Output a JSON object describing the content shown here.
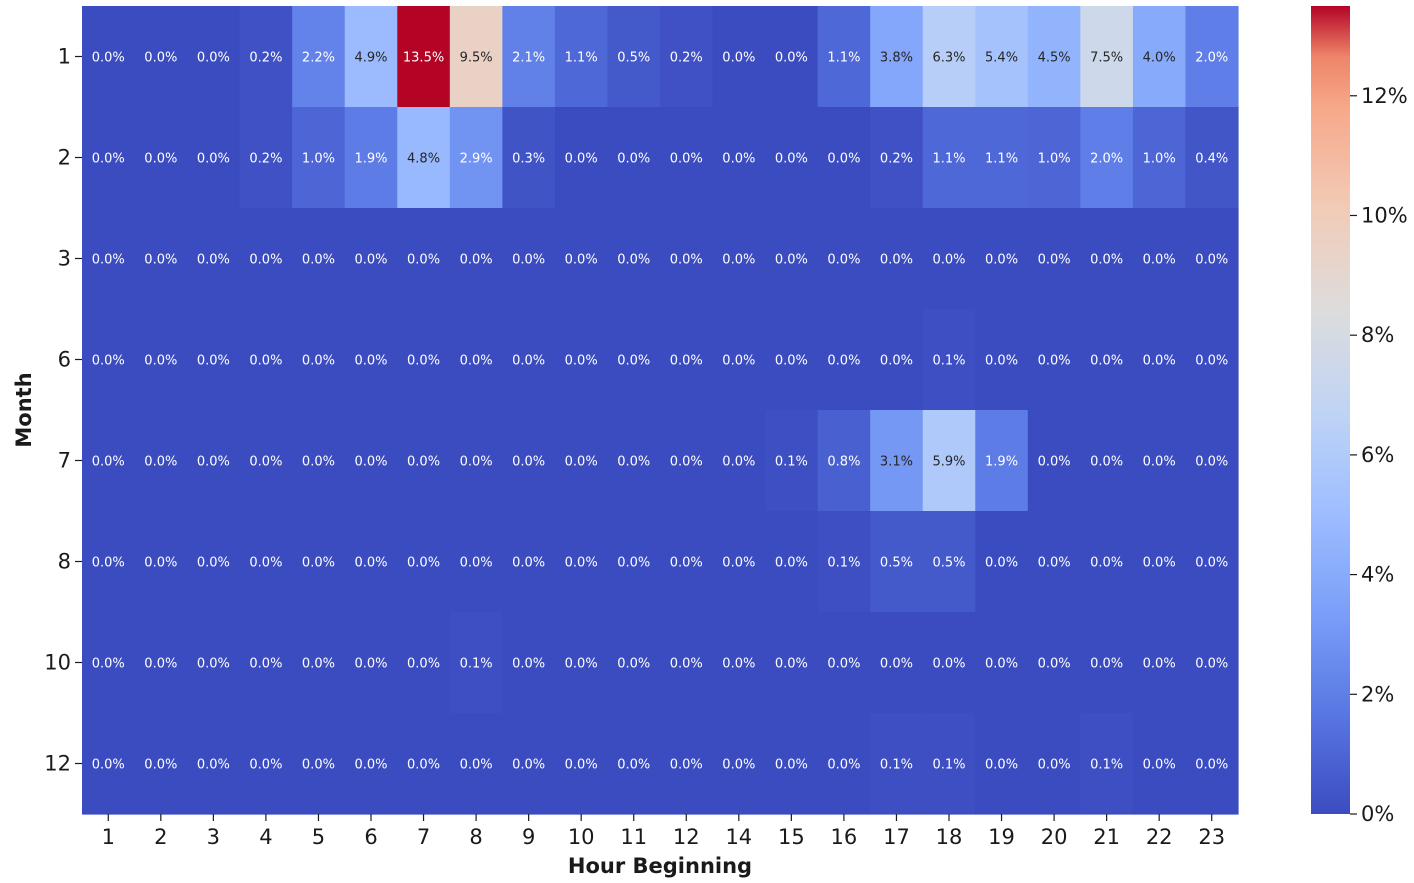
{
  "chart_data": {
    "type": "heatmap",
    "title": "",
    "xlabel": "Hour Beginning",
    "ylabel": "Month",
    "x_categories": [
      "1",
      "2",
      "3",
      "4",
      "5",
      "6",
      "7",
      "8",
      "9",
      "10",
      "11",
      "12",
      "14",
      "15",
      "16",
      "17",
      "18",
      "19",
      "20",
      "21",
      "22",
      "23"
    ],
    "y_categories": [
      "1",
      "2",
      "3",
      "6",
      "7",
      "8",
      "10",
      "12"
    ],
    "values": [
      [
        0.0,
        0.0,
        0.0,
        0.2,
        2.2,
        4.9,
        13.5,
        9.5,
        2.1,
        1.1,
        0.5,
        0.2,
        0.0,
        0.0,
        1.1,
        3.8,
        6.3,
        5.4,
        4.5,
        7.5,
        4.0,
        2.0
      ],
      [
        0.0,
        0.0,
        0.0,
        0.2,
        1.0,
        1.9,
        4.8,
        2.9,
        0.3,
        0.0,
        0.0,
        0.0,
        0.0,
        0.0,
        0.0,
        0.2,
        1.1,
        1.1,
        1.0,
        2.0,
        1.0,
        0.4
      ],
      [
        0.0,
        0.0,
        0.0,
        0.0,
        0.0,
        0.0,
        0.0,
        0.0,
        0.0,
        0.0,
        0.0,
        0.0,
        0.0,
        0.0,
        0.0,
        0.0,
        0.0,
        0.0,
        0.0,
        0.0,
        0.0,
        0.0
      ],
      [
        0.0,
        0.0,
        0.0,
        0.0,
        0.0,
        0.0,
        0.0,
        0.0,
        0.0,
        0.0,
        0.0,
        0.0,
        0.0,
        0.0,
        0.0,
        0.0,
        0.1,
        0.0,
        0.0,
        0.0,
        0.0,
        0.0
      ],
      [
        0.0,
        0.0,
        0.0,
        0.0,
        0.0,
        0.0,
        0.0,
        0.0,
        0.0,
        0.0,
        0.0,
        0.0,
        0.0,
        0.1,
        0.8,
        3.1,
        5.9,
        1.9,
        0.0,
        0.0,
        0.0,
        0.0
      ],
      [
        0.0,
        0.0,
        0.0,
        0.0,
        0.0,
        0.0,
        0.0,
        0.0,
        0.0,
        0.0,
        0.0,
        0.0,
        0.0,
        0.0,
        0.1,
        0.5,
        0.5,
        0.0,
        0.0,
        0.0,
        0.0,
        0.0
      ],
      [
        0.0,
        0.0,
        0.0,
        0.0,
        0.0,
        0.0,
        0.0,
        0.1,
        0.0,
        0.0,
        0.0,
        0.0,
        0.0,
        0.0,
        0.0,
        0.0,
        0.0,
        0.0,
        0.0,
        0.0,
        0.0,
        0.0
      ],
      [
        0.0,
        0.0,
        0.0,
        0.0,
        0.0,
        0.0,
        0.0,
        0.0,
        0.0,
        0.0,
        0.0,
        0.0,
        0.0,
        0.0,
        0.0,
        0.1,
        0.1,
        0.0,
        0.0,
        0.1,
        0.0,
        0.0
      ]
    ],
    "value_format": "percent_1dp",
    "vmin": 0,
    "vmax": 13.5,
    "colormap": "coolwarm",
    "colorbar": {
      "ticks": [
        0,
        2,
        4,
        6,
        8,
        10,
        12
      ],
      "tick_labels": [
        "0%",
        "2%",
        "4%",
        "6%",
        "8%",
        "10%",
        "12%"
      ],
      "placement": "right"
    },
    "grid": false,
    "legend": "none"
  }
}
